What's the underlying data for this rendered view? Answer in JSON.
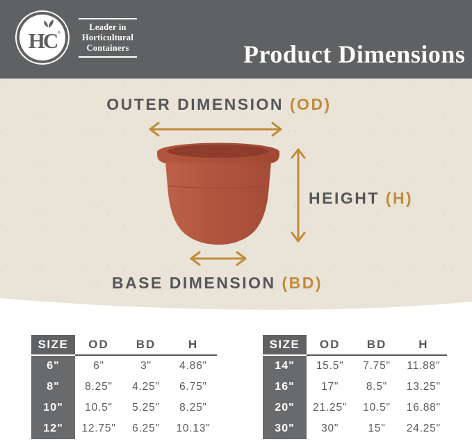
{
  "brand": {
    "monogram": "HC",
    "registered": "®",
    "tagline": [
      "Leader in",
      "Horticultural",
      "Containers"
    ]
  },
  "header": {
    "title": "Product Dimensions"
  },
  "diagram": {
    "outer_dimension": {
      "label": "OUTER DIMENSION",
      "abbr": "(OD)"
    },
    "height": {
      "label": "HEIGHT",
      "abbr": "(H)"
    },
    "base_dimension": {
      "label": "BASE DIMENSION",
      "abbr": "(BD)"
    }
  },
  "tables": [
    {
      "name": "small-sizes",
      "headers": [
        "SIZE",
        "OD",
        "BD",
        "H"
      ],
      "rows": [
        [
          "6\"",
          "6\"",
          "3\"",
          "4.86\""
        ],
        [
          "8\"",
          "8.25\"",
          "4.25\"",
          "6.75\""
        ],
        [
          "10\"",
          "10.5\"",
          "5.25\"",
          "8.25\""
        ],
        [
          "12\"",
          "12.75\"",
          "6.25\"",
          "10.13\""
        ]
      ]
    },
    {
      "name": "large-sizes",
      "headers": [
        "SIZE",
        "OD",
        "BD",
        "H"
      ],
      "rows": [
        [
          "14\"",
          "15.5\"",
          "7.75\"",
          "11.88\""
        ],
        [
          "16\"",
          "17\"",
          "8.5\"",
          "13.25\""
        ],
        [
          "20\"",
          "21.25\"",
          "10.5\"",
          "16.88\""
        ],
        [
          "30\"",
          "30\"",
          "15\"",
          "24.25\""
        ]
      ]
    }
  ],
  "colors": {
    "header_bg": "#5f6162",
    "hero_bg": "#eae4d8",
    "accent_gold": "#bf8c3a",
    "text_dark": "#54565a",
    "pot_terracotta": "#b05240",
    "table_dark_column": "#696a6c",
    "white": "#ffffff"
  }
}
